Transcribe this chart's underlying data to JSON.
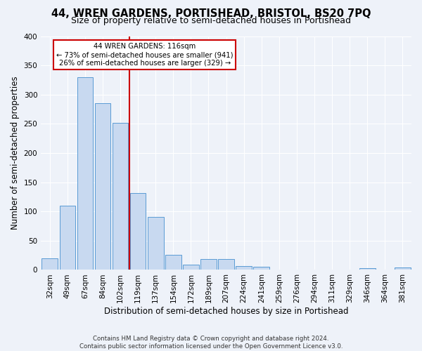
{
  "title": "44, WREN GARDENS, PORTISHEAD, BRISTOL, BS20 7PQ",
  "subtitle": "Size of property relative to semi-detached houses in Portishead",
  "xlabel": "Distribution of semi-detached houses by size in Portishead",
  "ylabel": "Number of semi-detached properties",
  "bar_labels": [
    "32sqm",
    "49sqm",
    "67sqm",
    "84sqm",
    "102sqm",
    "119sqm",
    "137sqm",
    "154sqm",
    "172sqm",
    "189sqm",
    "207sqm",
    "224sqm",
    "241sqm",
    "259sqm",
    "276sqm",
    "294sqm",
    "311sqm",
    "329sqm",
    "346sqm",
    "364sqm",
    "381sqm"
  ],
  "bar_values": [
    20,
    110,
    330,
    285,
    252,
    132,
    91,
    26,
    9,
    19,
    19,
    6,
    5,
    1,
    0,
    1,
    0,
    0,
    3,
    1,
    4
  ],
  "bar_color": "#c8d9f0",
  "bar_edge_color": "#5a9bd5",
  "vline_x": 4.5,
  "vline_label": "44 WREN GARDENS: 116sqm",
  "annotation_line1": "← 73% of semi-detached houses are smaller (941)",
  "annotation_line2": "26% of semi-detached houses are larger (329) →",
  "vline_color": "#cc0000",
  "annotation_box_color": "#ffffff",
  "annotation_box_edge": "#cc0000",
  "footer1": "Contains HM Land Registry data © Crown copyright and database right 2024.",
  "footer2": "Contains public sector information licensed under the Open Government Licence v3.0.",
  "ylim": [
    0,
    400
  ],
  "yticks": [
    0,
    50,
    100,
    150,
    200,
    250,
    300,
    350,
    400
  ],
  "bg_color": "#eef2f9",
  "grid_color": "#ffffff",
  "title_fontsize": 10.5,
  "subtitle_fontsize": 9,
  "axis_label_fontsize": 8.5,
  "tick_fontsize": 7.5,
  "footer_fontsize": 6.2
}
